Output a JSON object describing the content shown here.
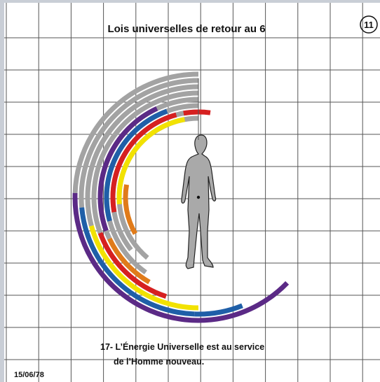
{
  "header": {
    "title": "Lois universelles de retour au 6",
    "page_number": "11"
  },
  "caption": {
    "lines": [
      "17- L’Énergie Universelle est au service",
      "de l’Homme nouveau."
    ]
  },
  "footer": {
    "date": "15/06/78"
  }
}
